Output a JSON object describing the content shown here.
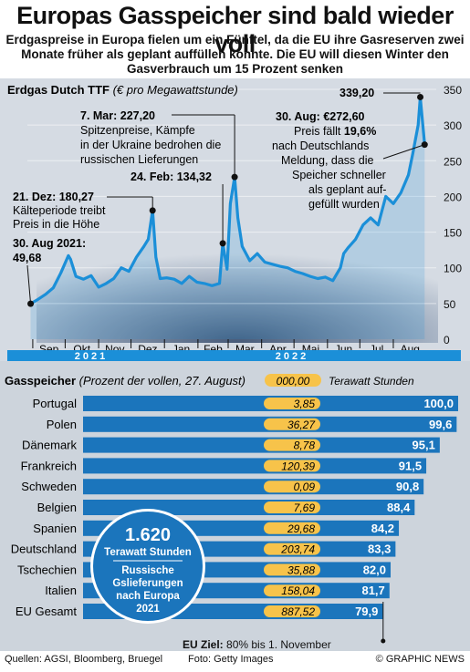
{
  "title": "Europas Gasspeicher sind bald wieder voll",
  "subtitle": "Erdgaspreise in Europa fielen um ein Fünftel, da die EU ihre Gasreserven zwei Monate früher als geplant auffüllen konnte. Die EU will diesen Winter den Gasverbrauch um 15 Prozent senken",
  "chart_data": [
    {
      "type": "line",
      "title": "Erdgas Dutch TTF",
      "unit_note": "(€ pro Megawattstunde)",
      "ylim": [
        0,
        350
      ],
      "y_ticks": [
        0,
        50,
        100,
        150,
        200,
        250,
        300,
        350
      ],
      "month_labels": [
        "Sep",
        "Okt",
        "Nov",
        "Dez",
        "Jan",
        "Feb",
        "Mar",
        "Apr",
        "Mai",
        "Jun",
        "Jul",
        "Aug"
      ],
      "year_labels": [
        "2021",
        "2022"
      ],
      "color": "#1b8fd8",
      "x": [
        "2021-08-30",
        "2021-09-06",
        "2021-09-13",
        "2021-09-20",
        "2021-09-27",
        "2021-10-04",
        "2021-10-06",
        "2021-10-11",
        "2021-10-18",
        "2021-10-25",
        "2021-11-01",
        "2021-11-08",
        "2021-11-15",
        "2021-11-22",
        "2021-11-29",
        "2021-12-06",
        "2021-12-13",
        "2021-12-17",
        "2021-12-21",
        "2021-12-24",
        "2021-12-28",
        "2022-01-03",
        "2022-01-10",
        "2022-01-17",
        "2022-01-24",
        "2022-01-31",
        "2022-02-07",
        "2022-02-14",
        "2022-02-21",
        "2022-02-24",
        "2022-02-28",
        "2022-03-03",
        "2022-03-07",
        "2022-03-10",
        "2022-03-14",
        "2022-03-21",
        "2022-03-28",
        "2022-04-04",
        "2022-04-11",
        "2022-04-18",
        "2022-04-25",
        "2022-05-02",
        "2022-05-09",
        "2022-05-16",
        "2022-05-23",
        "2022-05-30",
        "2022-06-06",
        "2022-06-13",
        "2022-06-16",
        "2022-06-20",
        "2022-06-27",
        "2022-07-04",
        "2022-07-11",
        "2022-07-18",
        "2022-07-25",
        "2022-08-01",
        "2022-08-08",
        "2022-08-15",
        "2022-08-19",
        "2022-08-24",
        "2022-08-26",
        "2022-08-30"
      ],
      "y": [
        49.68,
        56,
        63,
        72,
        93,
        117,
        112,
        88,
        84,
        89,
        73,
        78,
        85,
        100,
        95,
        115,
        130,
        140,
        180.27,
        115,
        85,
        86,
        84,
        78,
        88,
        80,
        78,
        75,
        78,
        134.32,
        98,
        190,
        227.2,
        170,
        130,
        110,
        120,
        108,
        105,
        102,
        100,
        95,
        92,
        88,
        85,
        87,
        82,
        100,
        120,
        128,
        140,
        160,
        170,
        160,
        200,
        190,
        205,
        230,
        260,
        300,
        339.2,
        272.6
      ],
      "annotations": [
        {
          "date": "2021-08-30",
          "label": "30. Aug 2021:",
          "value": "49,68",
          "text": ""
        },
        {
          "date": "2021-12-21",
          "label": "21. Dez: 180,27",
          "value": "",
          "text": "Kälteperiode treibt Preis in die Höhe"
        },
        {
          "date": "2022-03-07",
          "label": "7. Mar: 227,20",
          "value": "",
          "text": "Spitzenpreise, Kämpfe in der Ukraine bedrohen die russischen Lieferungen"
        },
        {
          "date": "2022-02-24",
          "label": "24. Feb: 134,32",
          "value": "",
          "text": ""
        },
        {
          "date": "2022-08-26",
          "label": "339,20",
          "value": "",
          "text": ""
        },
        {
          "date": "2022-08-30",
          "label": "30. Aug: €272,60",
          "value": "19,6%",
          "text": "Preis fällt 19,6% nach Deutschlands Meldung, dass die Speicher schneller als geplant aufgefüllt wurden"
        }
      ]
    },
    {
      "type": "bar",
      "title": "Gasspeicher",
      "subtitle": "(Prozent der vollen, 27. August)",
      "col_storage_label": "000,00",
      "col_storage_unit": "Terawatt Stunden",
      "categories": [
        "Portugal",
        "Polen",
        "Dänemark",
        "Frankreich",
        "Schweden",
        "Belgien",
        "Spanien",
        "Deutschland",
        "Tschechien",
        "Italien",
        "EU Gesamt"
      ],
      "values": [
        100.0,
        99.6,
        95.1,
        91.5,
        90.8,
        88.4,
        84.2,
        83.3,
        82.0,
        81.7,
        79.9
      ],
      "value_labels": [
        "100,0",
        "99,6",
        "95,1",
        "91,5",
        "90,8",
        "88,4",
        "84,2",
        "83,3",
        "82,0",
        "81,7",
        "79,9"
      ],
      "storage_twh": [
        "3,85",
        "36,27",
        "8,78",
        "120,39",
        "0,09",
        "7,69",
        "29,68",
        "203,74",
        "35,88",
        "158,04",
        "887,52"
      ],
      "xlim": [
        0,
        100
      ],
      "bar_color": "#1b75bc",
      "pill_color": "#f7c34a"
    }
  ],
  "callout": {
    "number": "1.620",
    "unit": "Terawatt Stunden",
    "text": "Russische Gslieferungen nach Europa 2021"
  },
  "eu_goal": {
    "label": "EU Ziel:",
    "text": "80% bis 1. November"
  },
  "footer": {
    "sources": "Quellen: AGSI, Bloomberg, Bruegel",
    "photo": "Foto: Getty Images",
    "copyright": "© GRAPHIC NEWS"
  }
}
